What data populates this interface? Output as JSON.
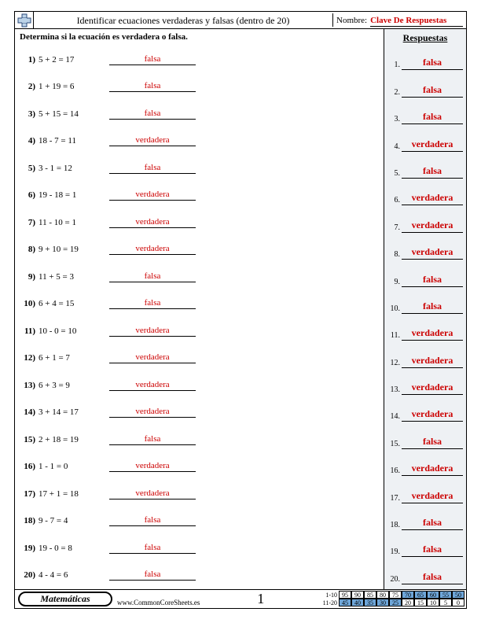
{
  "header": {
    "title": "Identificar ecuaciones verdaderas y falsas (dentro de 20)",
    "name_label": "Nombre:",
    "name_value": "Clave De Respuestas"
  },
  "instruction": "Determina si la ecuación es verdadera o falsa.",
  "answers_header": "Respuestas",
  "questions": [
    {
      "n": "1)",
      "eq": "5 + 2 = 17",
      "a": "falsa"
    },
    {
      "n": "2)",
      "eq": "1 + 19 = 6",
      "a": "falsa"
    },
    {
      "n": "3)",
      "eq": "5 + 15 = 14",
      "a": "falsa"
    },
    {
      "n": "4)",
      "eq": "18 - 7 = 11",
      "a": "verdadera"
    },
    {
      "n": "5)",
      "eq": "3 - 1 = 12",
      "a": "falsa"
    },
    {
      "n": "6)",
      "eq": "19 - 18 = 1",
      "a": "verdadera"
    },
    {
      "n": "7)",
      "eq": "11 - 10 = 1",
      "a": "verdadera"
    },
    {
      "n": "8)",
      "eq": "9 + 10 = 19",
      "a": "verdadera"
    },
    {
      "n": "9)",
      "eq": "11 + 5 = 3",
      "a": "falsa"
    },
    {
      "n": "10)",
      "eq": "6 + 4 = 15",
      "a": "falsa"
    },
    {
      "n": "11)",
      "eq": "10 - 0 = 10",
      "a": "verdadera"
    },
    {
      "n": "12)",
      "eq": "6 + 1 = 7",
      "a": "verdadera"
    },
    {
      "n": "13)",
      "eq": "6 + 3 = 9",
      "a": "verdadera"
    },
    {
      "n": "14)",
      "eq": "3 + 14 = 17",
      "a": "verdadera"
    },
    {
      "n": "15)",
      "eq": "2 + 18 = 19",
      "a": "falsa"
    },
    {
      "n": "16)",
      "eq": "1 - 1 = 0",
      "a": "verdadera"
    },
    {
      "n": "17)",
      "eq": "17 + 1 = 18",
      "a": "verdadera"
    },
    {
      "n": "18)",
      "eq": "9 - 7 = 4",
      "a": "falsa"
    },
    {
      "n": "19)",
      "eq": "19 - 0 = 8",
      "a": "falsa"
    },
    {
      "n": "20)",
      "eq": "4 - 4 = 6",
      "a": "falsa"
    }
  ],
  "answers": [
    {
      "n": "1.",
      "a": "falsa"
    },
    {
      "n": "2.",
      "a": "falsa"
    },
    {
      "n": "3.",
      "a": "falsa"
    },
    {
      "n": "4.",
      "a": "verdadera"
    },
    {
      "n": "5.",
      "a": "falsa"
    },
    {
      "n": "6.",
      "a": "verdadera"
    },
    {
      "n": "7.",
      "a": "verdadera"
    },
    {
      "n": "8.",
      "a": "verdadera"
    },
    {
      "n": "9.",
      "a": "falsa"
    },
    {
      "n": "10.",
      "a": "falsa"
    },
    {
      "n": "11.",
      "a": "verdadera"
    },
    {
      "n": "12.",
      "a": "verdadera"
    },
    {
      "n": "13.",
      "a": "verdadera"
    },
    {
      "n": "14.",
      "a": "verdadera"
    },
    {
      "n": "15.",
      "a": "falsa"
    },
    {
      "n": "16.",
      "a": "verdadera"
    },
    {
      "n": "17.",
      "a": "verdadera"
    },
    {
      "n": "18.",
      "a": "falsa"
    },
    {
      "n": "19.",
      "a": "falsa"
    },
    {
      "n": "20.",
      "a": "falsa"
    }
  ],
  "footer": {
    "subject": "Matemáticas",
    "site": "www.CommonCoreSheets.es",
    "page": "1",
    "score": {
      "row1_label": "1-10",
      "row2_label": "11-20",
      "row1": [
        "95",
        "90",
        "85",
        "80",
        "75",
        "70",
        "65",
        "60",
        "55",
        "50"
      ],
      "row2": [
        "45",
        "40",
        "35",
        "30",
        "25",
        "20",
        "15",
        "10",
        "5",
        "0"
      ],
      "hi1": [
        false,
        false,
        false,
        false,
        false,
        true,
        true,
        true,
        true,
        true
      ],
      "hi2": [
        true,
        true,
        true,
        true,
        true,
        false,
        false,
        false,
        false,
        false
      ]
    }
  },
  "colors": {
    "answer_red": "#cc0000",
    "panel_bg": "#eef1f4",
    "score_hi": "#6ea6d9"
  }
}
